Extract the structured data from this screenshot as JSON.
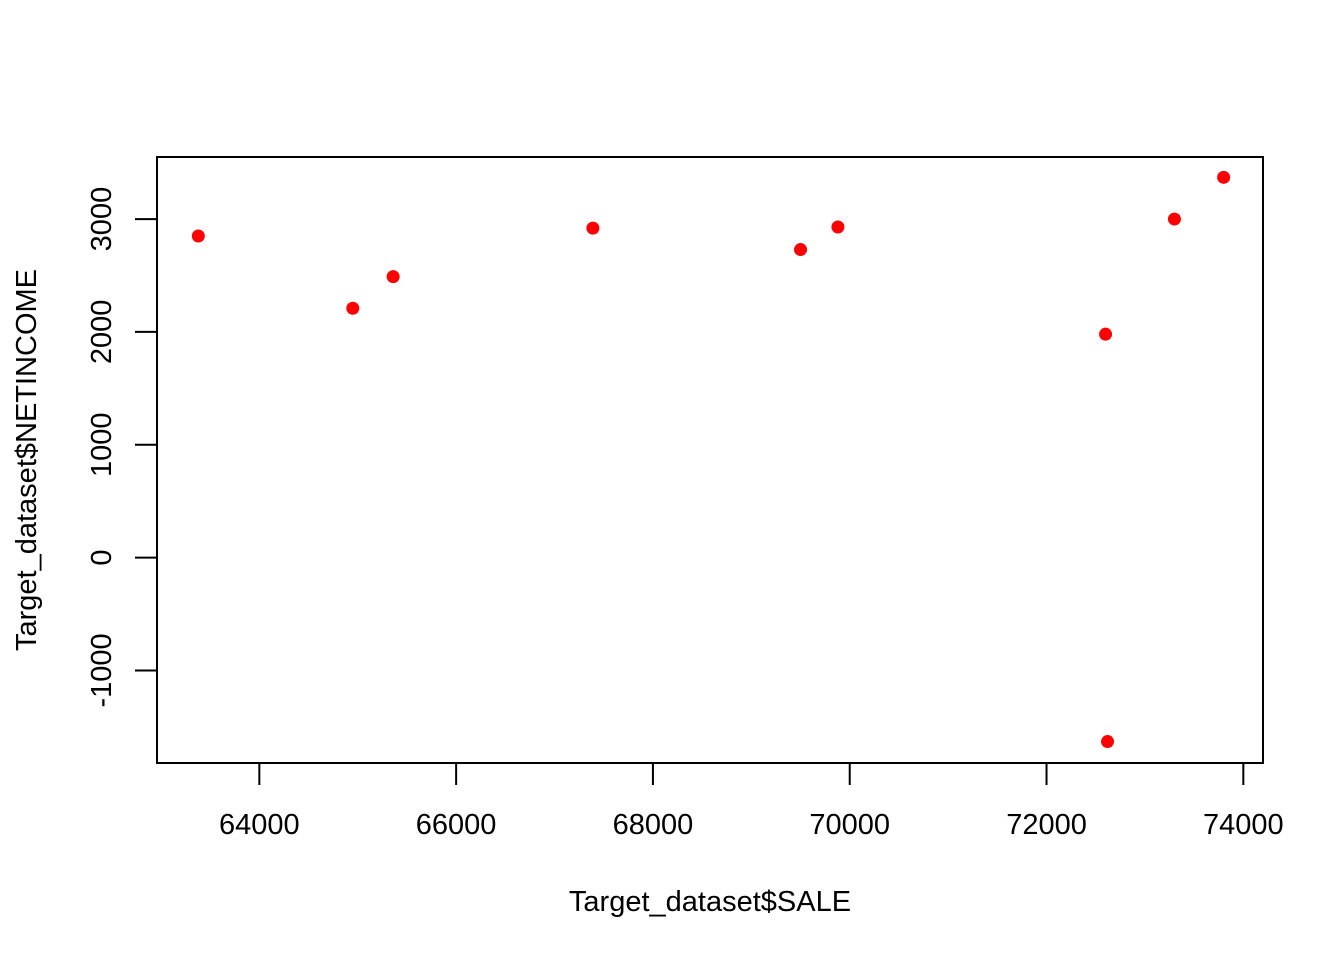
{
  "chart_data": {
    "type": "scatter",
    "title": "",
    "xlabel": "Target_dataset$SALE",
    "ylabel": "Target_dataset$NETINCOME",
    "xlim": [
      62960,
      74200
    ],
    "ylim": [
      -1820,
      3550
    ],
    "xticks": [
      64000,
      66000,
      68000,
      70000,
      72000,
      74000
    ],
    "yticks": [
      -1000,
      0,
      1000,
      2000,
      3000
    ],
    "grid": false,
    "legend": "none",
    "point_color": "#ff0000",
    "points": [
      {
        "x": 63380,
        "y": 2850
      },
      {
        "x": 64950,
        "y": 2210
      },
      {
        "x": 65360,
        "y": 2490
      },
      {
        "x": 67390,
        "y": 2920
      },
      {
        "x": 69500,
        "y": 2730
      },
      {
        "x": 69880,
        "y": 2930
      },
      {
        "x": 72600,
        "y": 1980
      },
      {
        "x": 72620,
        "y": -1630
      },
      {
        "x": 73300,
        "y": 3000
      },
      {
        "x": 73800,
        "y": 3370
      }
    ]
  }
}
